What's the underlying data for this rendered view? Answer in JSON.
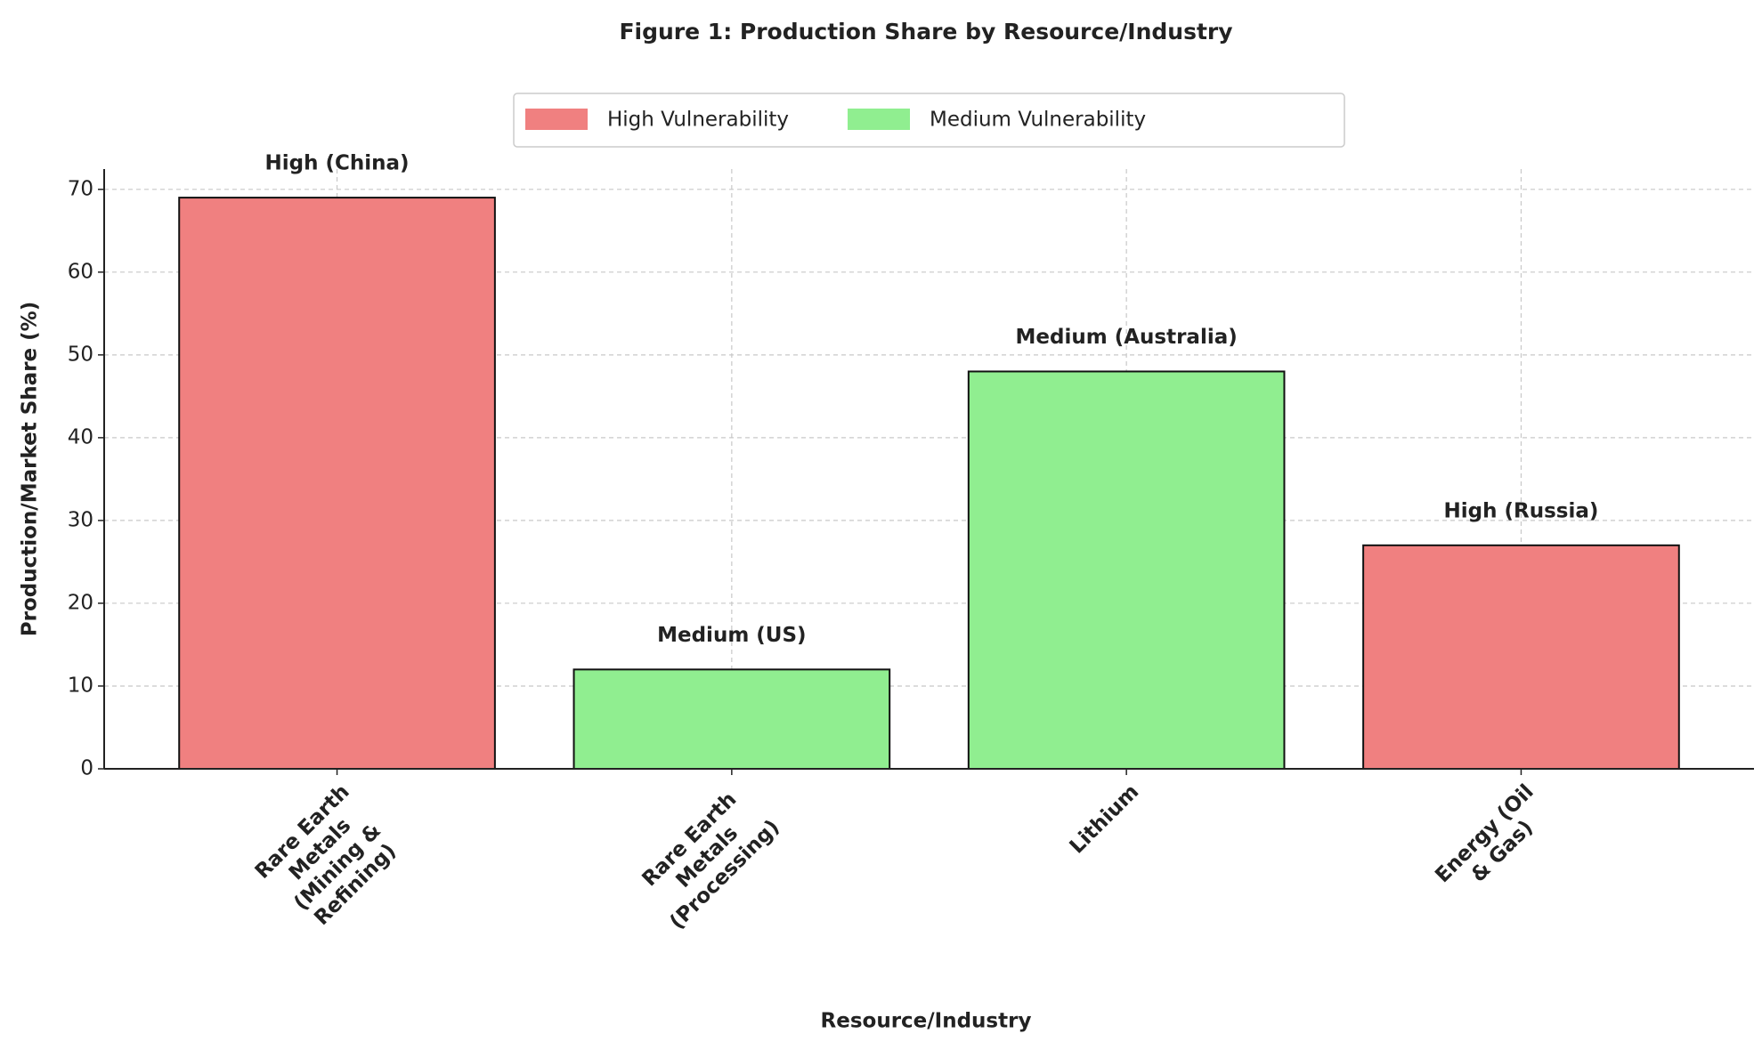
{
  "chart_data": {
    "type": "bar",
    "title": "Figure 1: Production Share by Resource/Industry",
    "x_label": "Resource/Industry",
    "y_label": "Production/Market Share (%)",
    "categories": [
      "Rare Earth\nMetals\n(Mining &\nRefining)",
      "Rare Earth\nMetals\n(Processing)",
      "Lithium",
      "Energy (Oil\n& Gas)"
    ],
    "series": [
      {
        "name": "High Vulnerability",
        "color": "#f08080",
        "values": [
          69,
          null,
          null,
          27
        ]
      },
      {
        "name": "Medium Vulnerability",
        "color": "#90ee90",
        "values": [
          null,
          12,
          48,
          null
        ]
      }
    ],
    "annotations": [
      "High (China)",
      "Medium (US)",
      "Medium (Australia)",
      "High (Russia)"
    ],
    "ylim": [
      0,
      72.45
    ],
    "yticks": [
      0,
      10,
      20,
      30,
      40,
      50,
      60,
      70
    ],
    "grid": true,
    "legend": "top"
  }
}
